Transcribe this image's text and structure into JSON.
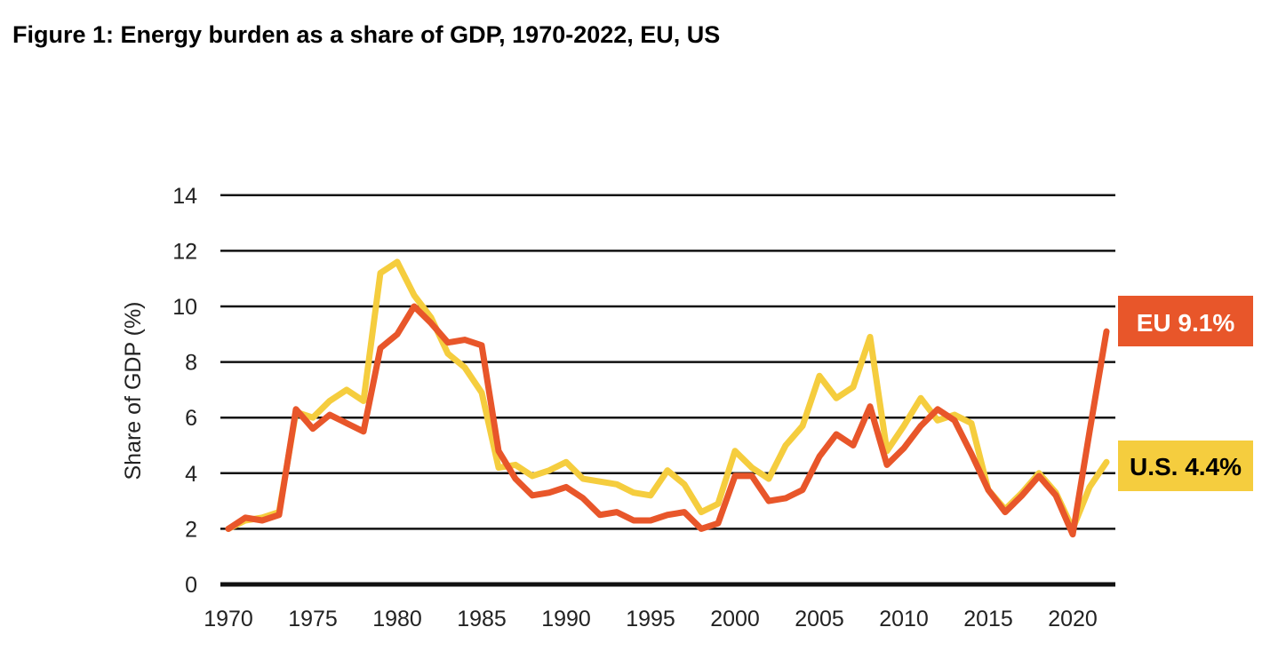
{
  "title": "Figure 1: Energy burden as a share of GDP, 1970-2022, EU, US",
  "chart_data": {
    "type": "line",
    "title": "Figure 1: Energy burden as a share of GDP, 1970-2022, EU, US",
    "xlabel": "",
    "ylabel": "Share of GDP (%)",
    "xlim": [
      1970,
      2022
    ],
    "ylim": [
      0,
      14
    ],
    "xticks": [
      1970,
      1975,
      1980,
      1985,
      1990,
      1995,
      2000,
      2005,
      2010,
      2015,
      2020
    ],
    "yticks": [
      0,
      2,
      4,
      6,
      8,
      10,
      12,
      14
    ],
    "grid": "horizontal",
    "x": [
      1970,
      1971,
      1972,
      1973,
      1974,
      1975,
      1976,
      1977,
      1978,
      1979,
      1980,
      1981,
      1982,
      1983,
      1984,
      1985,
      1986,
      1987,
      1988,
      1989,
      1990,
      1991,
      1992,
      1993,
      1994,
      1995,
      1996,
      1997,
      1998,
      1999,
      2000,
      2001,
      2002,
      2003,
      2004,
      2005,
      2006,
      2007,
      2008,
      2009,
      2010,
      2011,
      2012,
      2013,
      2014,
      2015,
      2016,
      2017,
      2018,
      2019,
      2020,
      2021,
      2022
    ],
    "series": [
      {
        "name": "U.S.",
        "color": "#f5cd3e",
        "end_label": "U.S. 4.4%",
        "values": [
          2.0,
          2.3,
          2.4,
          2.6,
          6.2,
          6.0,
          6.6,
          7.0,
          6.6,
          11.2,
          11.6,
          10.4,
          9.6,
          8.3,
          7.8,
          6.9,
          4.2,
          4.3,
          3.9,
          4.1,
          4.4,
          3.8,
          3.7,
          3.6,
          3.3,
          3.2,
          4.1,
          3.6,
          2.6,
          2.9,
          4.8,
          4.2,
          3.8,
          5.0,
          5.7,
          7.5,
          6.7,
          7.1,
          8.9,
          4.8,
          5.7,
          6.7,
          5.9,
          6.1,
          5.8,
          3.4,
          2.7,
          3.3,
          4.0,
          3.3,
          2.0,
          3.5,
          4.4
        ]
      },
      {
        "name": "EU",
        "color": "#e8562a",
        "end_label": "EU 9.1%",
        "values": [
          2.0,
          2.4,
          2.3,
          2.5,
          6.3,
          5.6,
          6.1,
          5.8,
          5.5,
          8.5,
          9.0,
          10.0,
          9.4,
          8.7,
          8.8,
          8.6,
          4.8,
          3.8,
          3.2,
          3.3,
          3.5,
          3.1,
          2.5,
          2.6,
          2.3,
          2.3,
          2.5,
          2.6,
          2.0,
          2.2,
          3.9,
          3.9,
          3.0,
          3.1,
          3.4,
          4.6,
          5.4,
          5.0,
          6.4,
          4.3,
          4.9,
          5.7,
          6.3,
          5.9,
          4.7,
          3.4,
          2.6,
          3.2,
          3.9,
          3.2,
          1.8,
          5.5,
          9.1
        ]
      }
    ]
  }
}
